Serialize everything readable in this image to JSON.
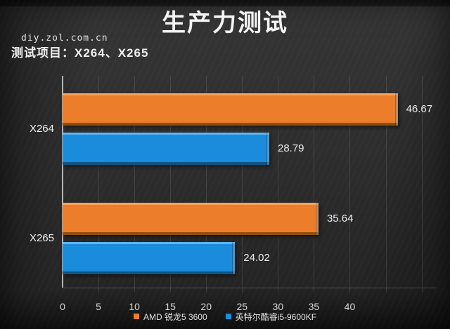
{
  "page": {
    "title": "生产力测试",
    "watermark": "diy.zol.com.cn",
    "subtitle": "测试项目：X264、X265"
  },
  "chart_data": {
    "type": "bar",
    "orientation": "horizontal",
    "title": "生产力测试",
    "subtitle": "测试项目：X264、X265",
    "categories": [
      "X264",
      "X265"
    ],
    "series": [
      {
        "key": "amd",
        "name": "AMD 锐龙5 3600",
        "color": "#EC7D2B",
        "color_light": "#F9A45B",
        "color_dark": "#8F4E10",
        "values": [
          46.67,
          35.64
        ],
        "value_labels": [
          "46.67",
          "35.64"
        ]
      },
      {
        "key": "intel",
        "name": "英特尔酷睿i5-9600KF",
        "color": "#1B8CDC",
        "color_light": "#5CB6F0",
        "color_dark": "#0E5586",
        "values": [
          28.79,
          24.02
        ],
        "value_labels": [
          "28.79",
          "24.02"
        ]
      }
    ],
    "axis": {
      "min": 0,
      "max": 52,
      "tick_interval": 5,
      "tick_values": [
        0,
        5,
        10,
        15,
        20,
        25,
        30,
        35,
        40
      ],
      "tick_labels": [
        "0",
        "5",
        "10",
        "15",
        "20",
        "25",
        "30",
        "35",
        "40"
      ],
      "gridline_values": [
        5,
        10,
        15,
        20,
        25,
        30,
        35,
        40,
        45,
        50
      ]
    },
    "grid": true,
    "legend_position": "bottom"
  }
}
